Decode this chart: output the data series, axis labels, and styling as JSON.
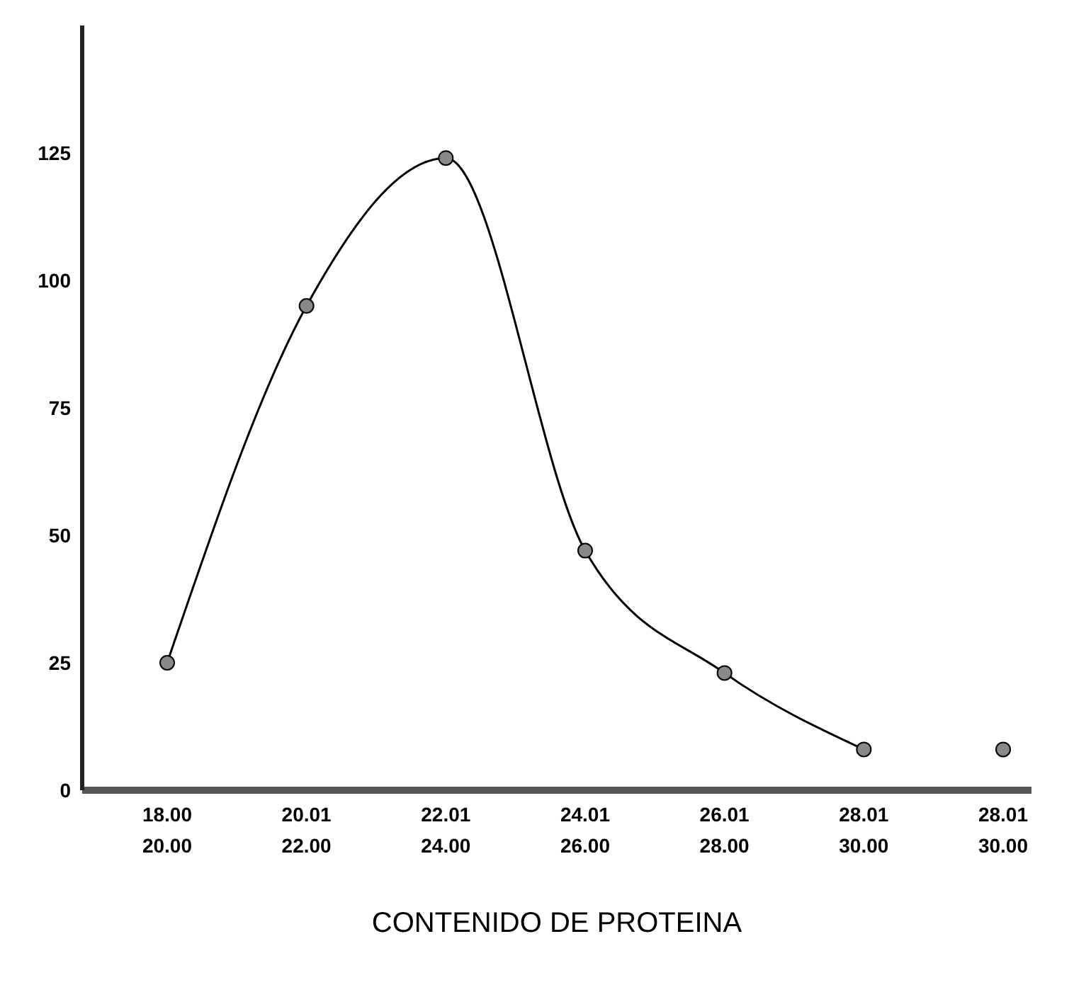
{
  "chart_data": {
    "type": "line",
    "xlabel": "CONTENIDO DE PROTEINA",
    "categories": [
      "18.00\n20.00",
      "20.01\n22.00",
      "22.01\n24.00",
      "24.01\n26.00",
      "26.01\n28.00",
      "28.01\n30.00",
      "28.01\n30.00"
    ],
    "series": [
      {
        "color": "#000000",
        "values": [
          25,
          95,
          124,
          47,
          23,
          8,
          null
        ]
      },
      {
        "color": "#000000",
        "values": [
          null,
          null,
          null,
          null,
          null,
          null,
          8
        ]
      }
    ],
    "ylim": [
      0,
      150
    ],
    "yticks": [
      0,
      25,
      50,
      75,
      100,
      125
    ],
    "marker": "circle",
    "grid": false,
    "legend": false
  }
}
